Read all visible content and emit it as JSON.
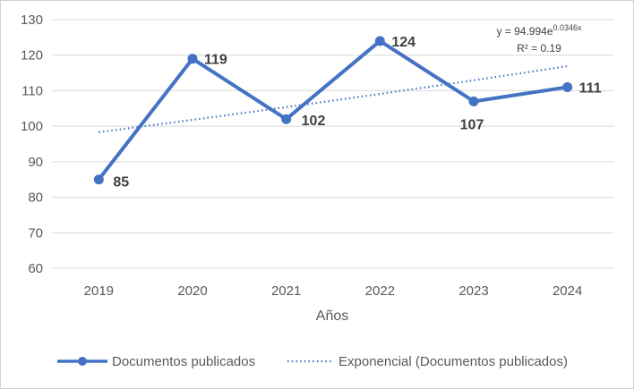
{
  "chart_data": {
    "type": "line",
    "categories": [
      "2019",
      "2020",
      "2021",
      "2022",
      "2023",
      "2024"
    ],
    "series": [
      {
        "name": "Documentos publicados",
        "values": [
          85,
          119,
          102,
          124,
          107,
          111
        ],
        "color": "#4472C4"
      }
    ],
    "data_labels": [
      "85",
      "119",
      "102",
      "124",
      "107",
      "111"
    ],
    "trendline": {
      "name": "Exponencial (Documentos publicados)",
      "type": "exponential",
      "coefficient": 94.994,
      "rate": 0.0346,
      "equation_text": "y = 94.994e",
      "equation_exponent": "0.0346x",
      "r2_text": "R² = 0.19",
      "color": "#4472C4"
    },
    "xlabel": "Años",
    "ylabel": "",
    "ylim": [
      60,
      130
    ],
    "yticks": [
      "60",
      "70",
      "80",
      "90",
      "100",
      "110",
      "120",
      "130"
    ],
    "grid": true,
    "legend_position": "bottom"
  }
}
